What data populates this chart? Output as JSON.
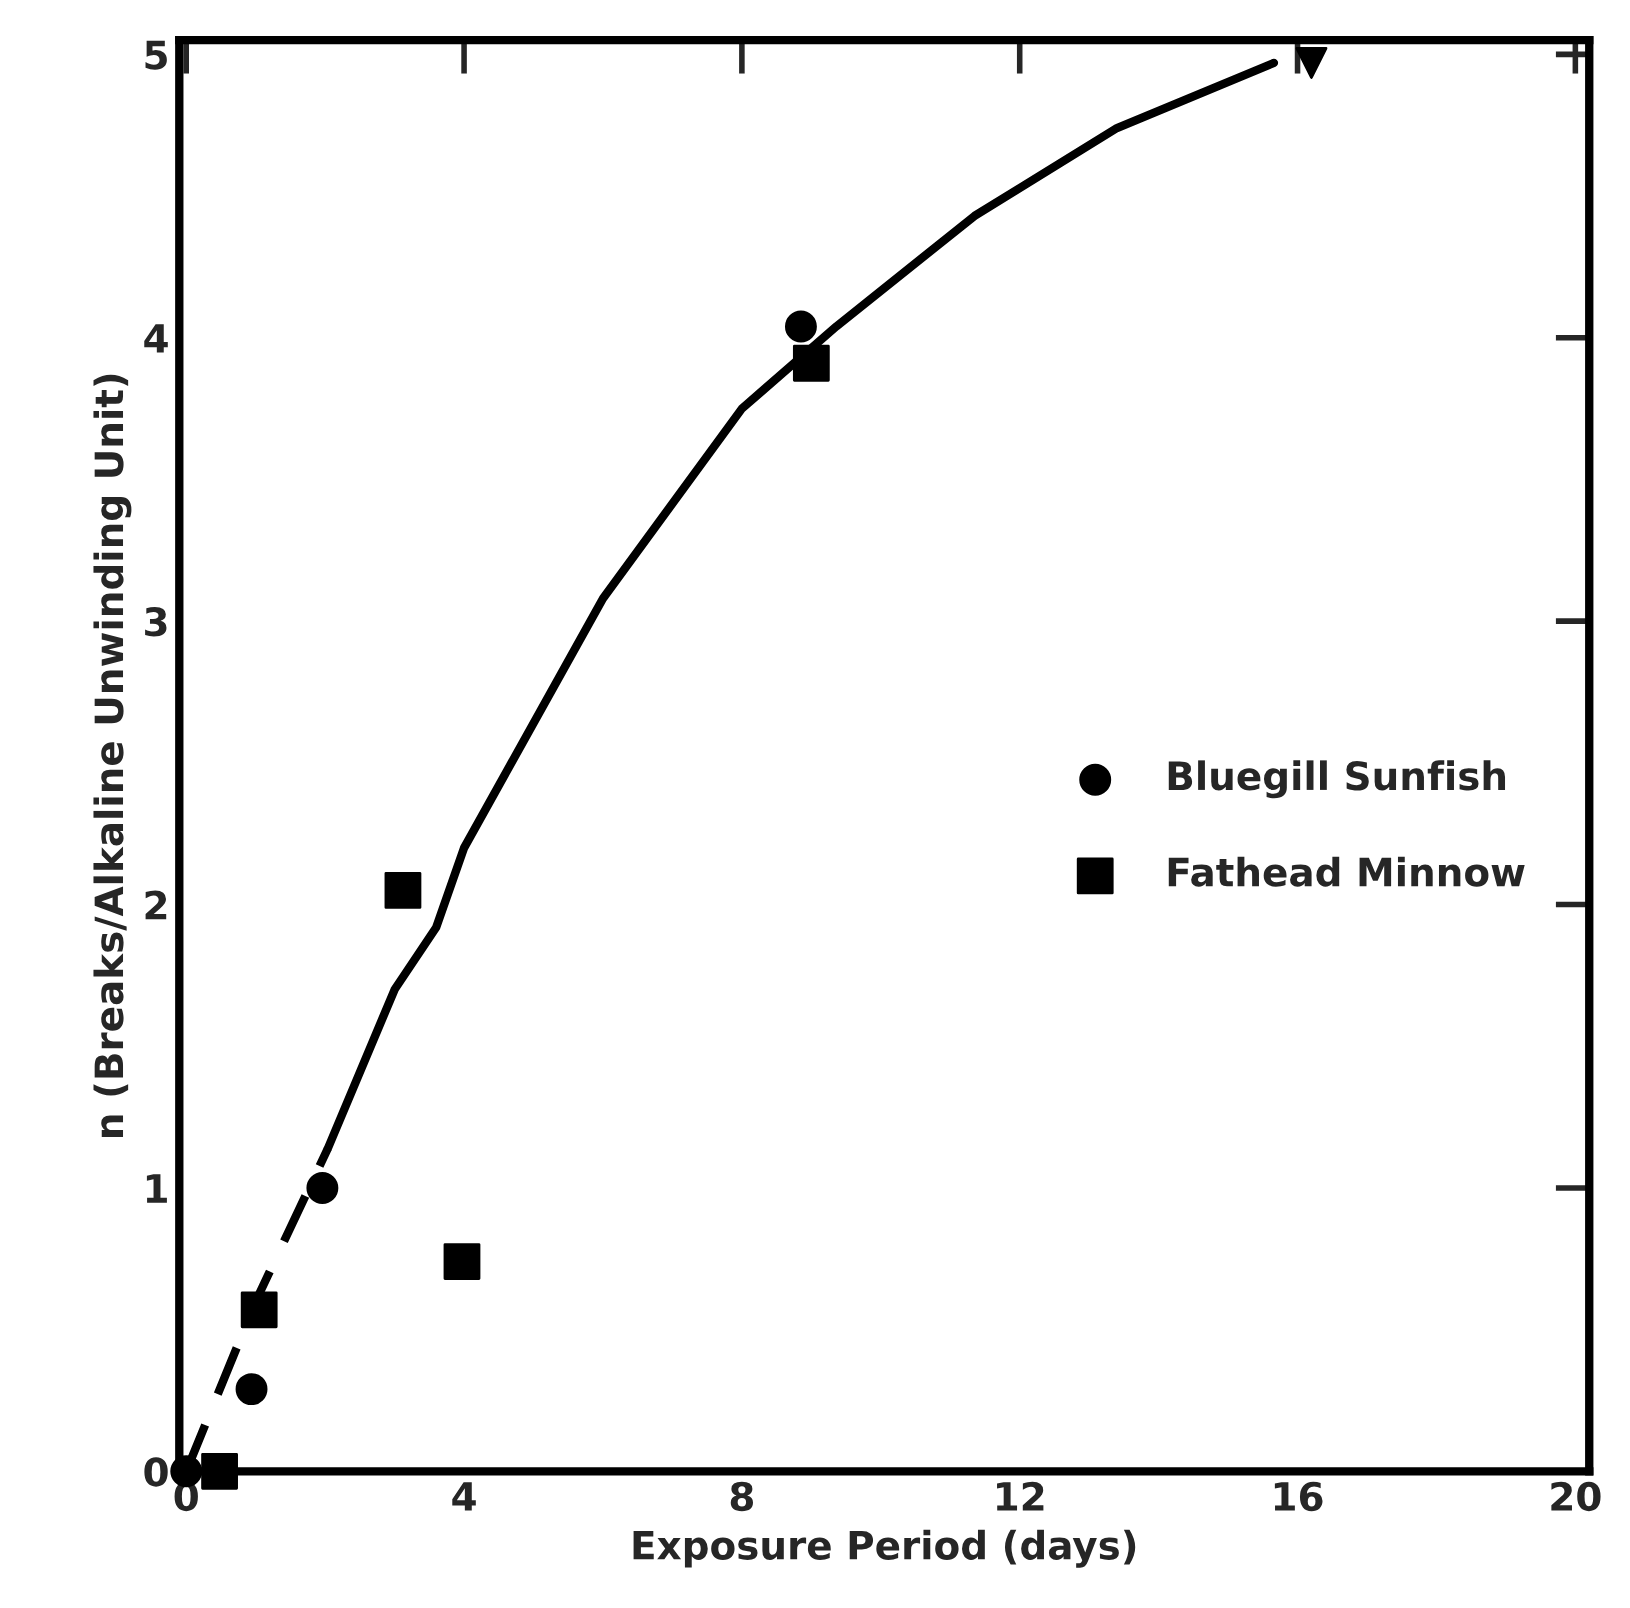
{
  "chart_data": {
    "type": "scatter",
    "xlabel": "Exposure Period (days)",
    "ylabel": "n (Breaks/Alkaline Unwinding Unit)",
    "xlim": [
      -0.1,
      20.2
    ],
    "ylim": [
      0,
      5.05
    ],
    "xticks": [
      0,
      4,
      8,
      12,
      16,
      20
    ],
    "yticks": [
      0,
      1,
      2,
      3,
      4,
      5
    ],
    "grid": false,
    "legend": "right",
    "series": [
      {
        "name": "Bluegill Sunfish",
        "color": "#000000",
        "marker": "circle",
        "x": [
          0,
          0.94,
          1.96,
          8.85
        ],
        "values": [
          0,
          0.29,
          1.0,
          4.04
        ]
      },
      {
        "name": "Fathead Minnow",
        "color": "#000000",
        "marker": "square",
        "x": [
          0.48,
          1.05,
          3.12,
          3.97,
          9.0
        ],
        "values": [
          0,
          0.57,
          2.05,
          0.74,
          3.91
        ]
      },
      {
        "color": "#000000",
        "marker": "triangle",
        "x": [
          16.2
        ],
        "values": [
          4.97
        ]
      },
      {
        "type": "line",
        "color": "#000000",
        "line_style": "dashed",
        "marker": "none",
        "x": [
          0,
          1,
          2.04
        ],
        "values": [
          0,
          0.6,
          1.14
        ]
      },
      {
        "type": "line",
        "color": "#000000",
        "line_style": "solid",
        "marker": "none",
        "x": [
          2.04,
          3,
          3.6,
          4,
          6,
          8,
          9.36,
          11.35,
          13.4,
          15.66
        ],
        "values": [
          1.14,
          1.7,
          1.92,
          2.2,
          3.08,
          3.75,
          4.04,
          4.43,
          4.74,
          4.97
        ]
      }
    ]
  }
}
